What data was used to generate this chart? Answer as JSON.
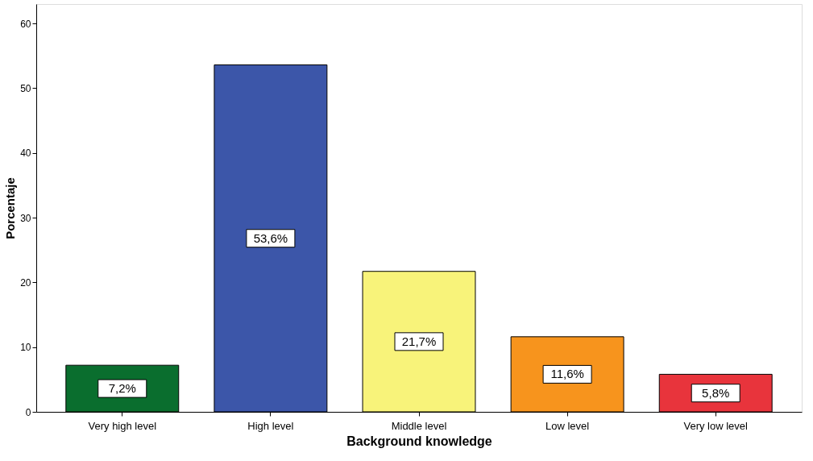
{
  "chart_data": {
    "type": "bar",
    "xlabel": "Background knowledge",
    "ylabel": "Porcentaje",
    "categories": [
      "Very high level",
      "High level",
      "Middle level",
      "Low level",
      "Very low level"
    ],
    "values": [
      7.2,
      53.6,
      21.7,
      11.6,
      5.8
    ],
    "colors": [
      "#0a6e2e",
      "#3c56a9",
      "#f8f37a",
      "#f7941d",
      "#e8343c"
    ],
    "value_labels": [
      "7,2%",
      "53,6%",
      "21,7%",
      "11,6%",
      "5,8%"
    ],
    "ylim": [
      0,
      63
    ],
    "yticks": [
      0,
      10,
      20,
      30,
      40,
      50,
      60
    ],
    "grid": false,
    "legend": false
  }
}
